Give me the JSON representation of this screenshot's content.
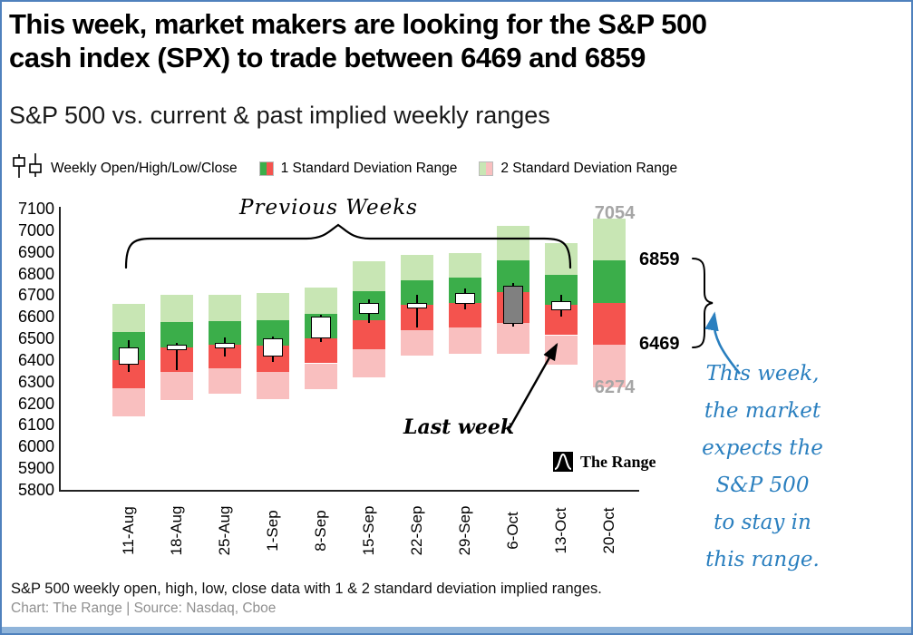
{
  "page": {
    "title_line1": "This week, market makers are looking for the S&P 500",
    "title_line2": "cash index (SPX) to trade between 6469 and 6859",
    "subtitle": "S&P 500 vs. current & past implied weekly ranges"
  },
  "legend": {
    "candles_label": "Weekly Open/High/Low/Close",
    "sd1_label": "1 Standard Deviation Range",
    "sd2_label": "2 Standard Deviation Range"
  },
  "annotations": {
    "previous_weeks": "Previous Weeks",
    "last_week": "Last week",
    "upper_2sd_level": "7054",
    "upper_1sd_level": "6859",
    "lower_1sd_level": "6469",
    "lower_2sd_level": "6274",
    "this_week_lines": [
      "This week,",
      "the market",
      "expects the",
      "S&P 500",
      "to stay in",
      "this range."
    ]
  },
  "logo": {
    "text": "The Range"
  },
  "footer": {
    "line1": "S&P 500 weekly open, high, low, close data with 1 & 2 standard deviation implied ranges.",
    "line2": "Chart: The Range | Source: Nasdaq, Cboe"
  },
  "colors": {
    "sd1_upper": "#3bae4a",
    "sd1_lower": "#f4534e",
    "sd2_upper": "#c8e6b4",
    "sd2_lower": "#f9bfbf",
    "candle_up": "#ffffff",
    "candle_down": "#808080",
    "accent_blue": "#2a7fbf",
    "muted_gray": "#a6a6a6",
    "border_blue": "#4f81bd"
  },
  "chart_data": {
    "type": "candlestick",
    "title": "S&P 500 vs. current & past implied weekly ranges",
    "ylabel": "",
    "xlabel": "",
    "ylim": [
      5800,
      7100
    ],
    "ytick_step": 100,
    "grid": false,
    "legend_position": "top",
    "categories": [
      "11-Aug",
      "18-Aug",
      "25-Aug",
      "1-Sep",
      "8-Sep",
      "15-Sep",
      "22-Sep",
      "29-Sep",
      "6-Oct",
      "13-Oct",
      "20-Oct"
    ],
    "weeks": [
      {
        "label": "11-Aug",
        "ohlc": {
          "open": 6380,
          "high": 6490,
          "low": 6345,
          "close": 6460
        },
        "sd1": [
          6270,
          6530
        ],
        "sd2": [
          6140,
          6660
        ]
      },
      {
        "label": "18-Aug",
        "ohlc": {
          "open": 6445,
          "high": 6480,
          "low": 6355,
          "close": 6470
        },
        "sd1": [
          6345,
          6575
        ],
        "sd2": [
          6215,
          6700
        ]
      },
      {
        "label": "25-Aug",
        "ohlc": {
          "open": 6455,
          "high": 6505,
          "low": 6415,
          "close": 6480
        },
        "sd1": [
          6360,
          6580
        ],
        "sd2": [
          6245,
          6700
        ]
      },
      {
        "label": "1-Sep",
        "ohlc": {
          "open": 6415,
          "high": 6508,
          "low": 6390,
          "close": 6500
        },
        "sd1": [
          6345,
          6585
        ],
        "sd2": [
          6220,
          6710
        ]
      },
      {
        "label": "8-Sep",
        "ohlc": {
          "open": 6502,
          "high": 6610,
          "low": 6482,
          "close": 6600
        },
        "sd1": [
          6385,
          6615
        ],
        "sd2": [
          6265,
          6735
        ]
      },
      {
        "label": "15-Sep",
        "ohlc": {
          "open": 6615,
          "high": 6680,
          "low": 6570,
          "close": 6662
        },
        "sd1": [
          6450,
          6720
        ],
        "sd2": [
          6320,
          6855
        ]
      },
      {
        "label": "22-Sep",
        "ohlc": {
          "open": 6638,
          "high": 6700,
          "low": 6550,
          "close": 6664
        },
        "sd1": [
          6540,
          6770
        ],
        "sd2": [
          6420,
          6885
        ]
      },
      {
        "label": "29-Sep",
        "ohlc": {
          "open": 6661,
          "high": 6730,
          "low": 6635,
          "close": 6712
        },
        "sd1": [
          6550,
          6780
        ],
        "sd2": [
          6430,
          6895
        ]
      },
      {
        "label": "6-Oct",
        "ohlc": {
          "open": 6742,
          "high": 6755,
          "low": 6555,
          "close": 6568
        },
        "sd1": [
          6570,
          6860
        ],
        "sd2": [
          6430,
          7020
        ]
      },
      {
        "label": "13-Oct",
        "ohlc": {
          "open": 6630,
          "high": 6700,
          "low": 6600,
          "close": 6672
        },
        "sd1": [
          6515,
          6795
        ],
        "sd2": [
          6380,
          6940
        ]
      },
      {
        "label": "20-Oct",
        "ohlc": null,
        "sd1": [
          6469,
          6859
        ],
        "sd2": [
          6274,
          7054
        ]
      }
    ]
  }
}
